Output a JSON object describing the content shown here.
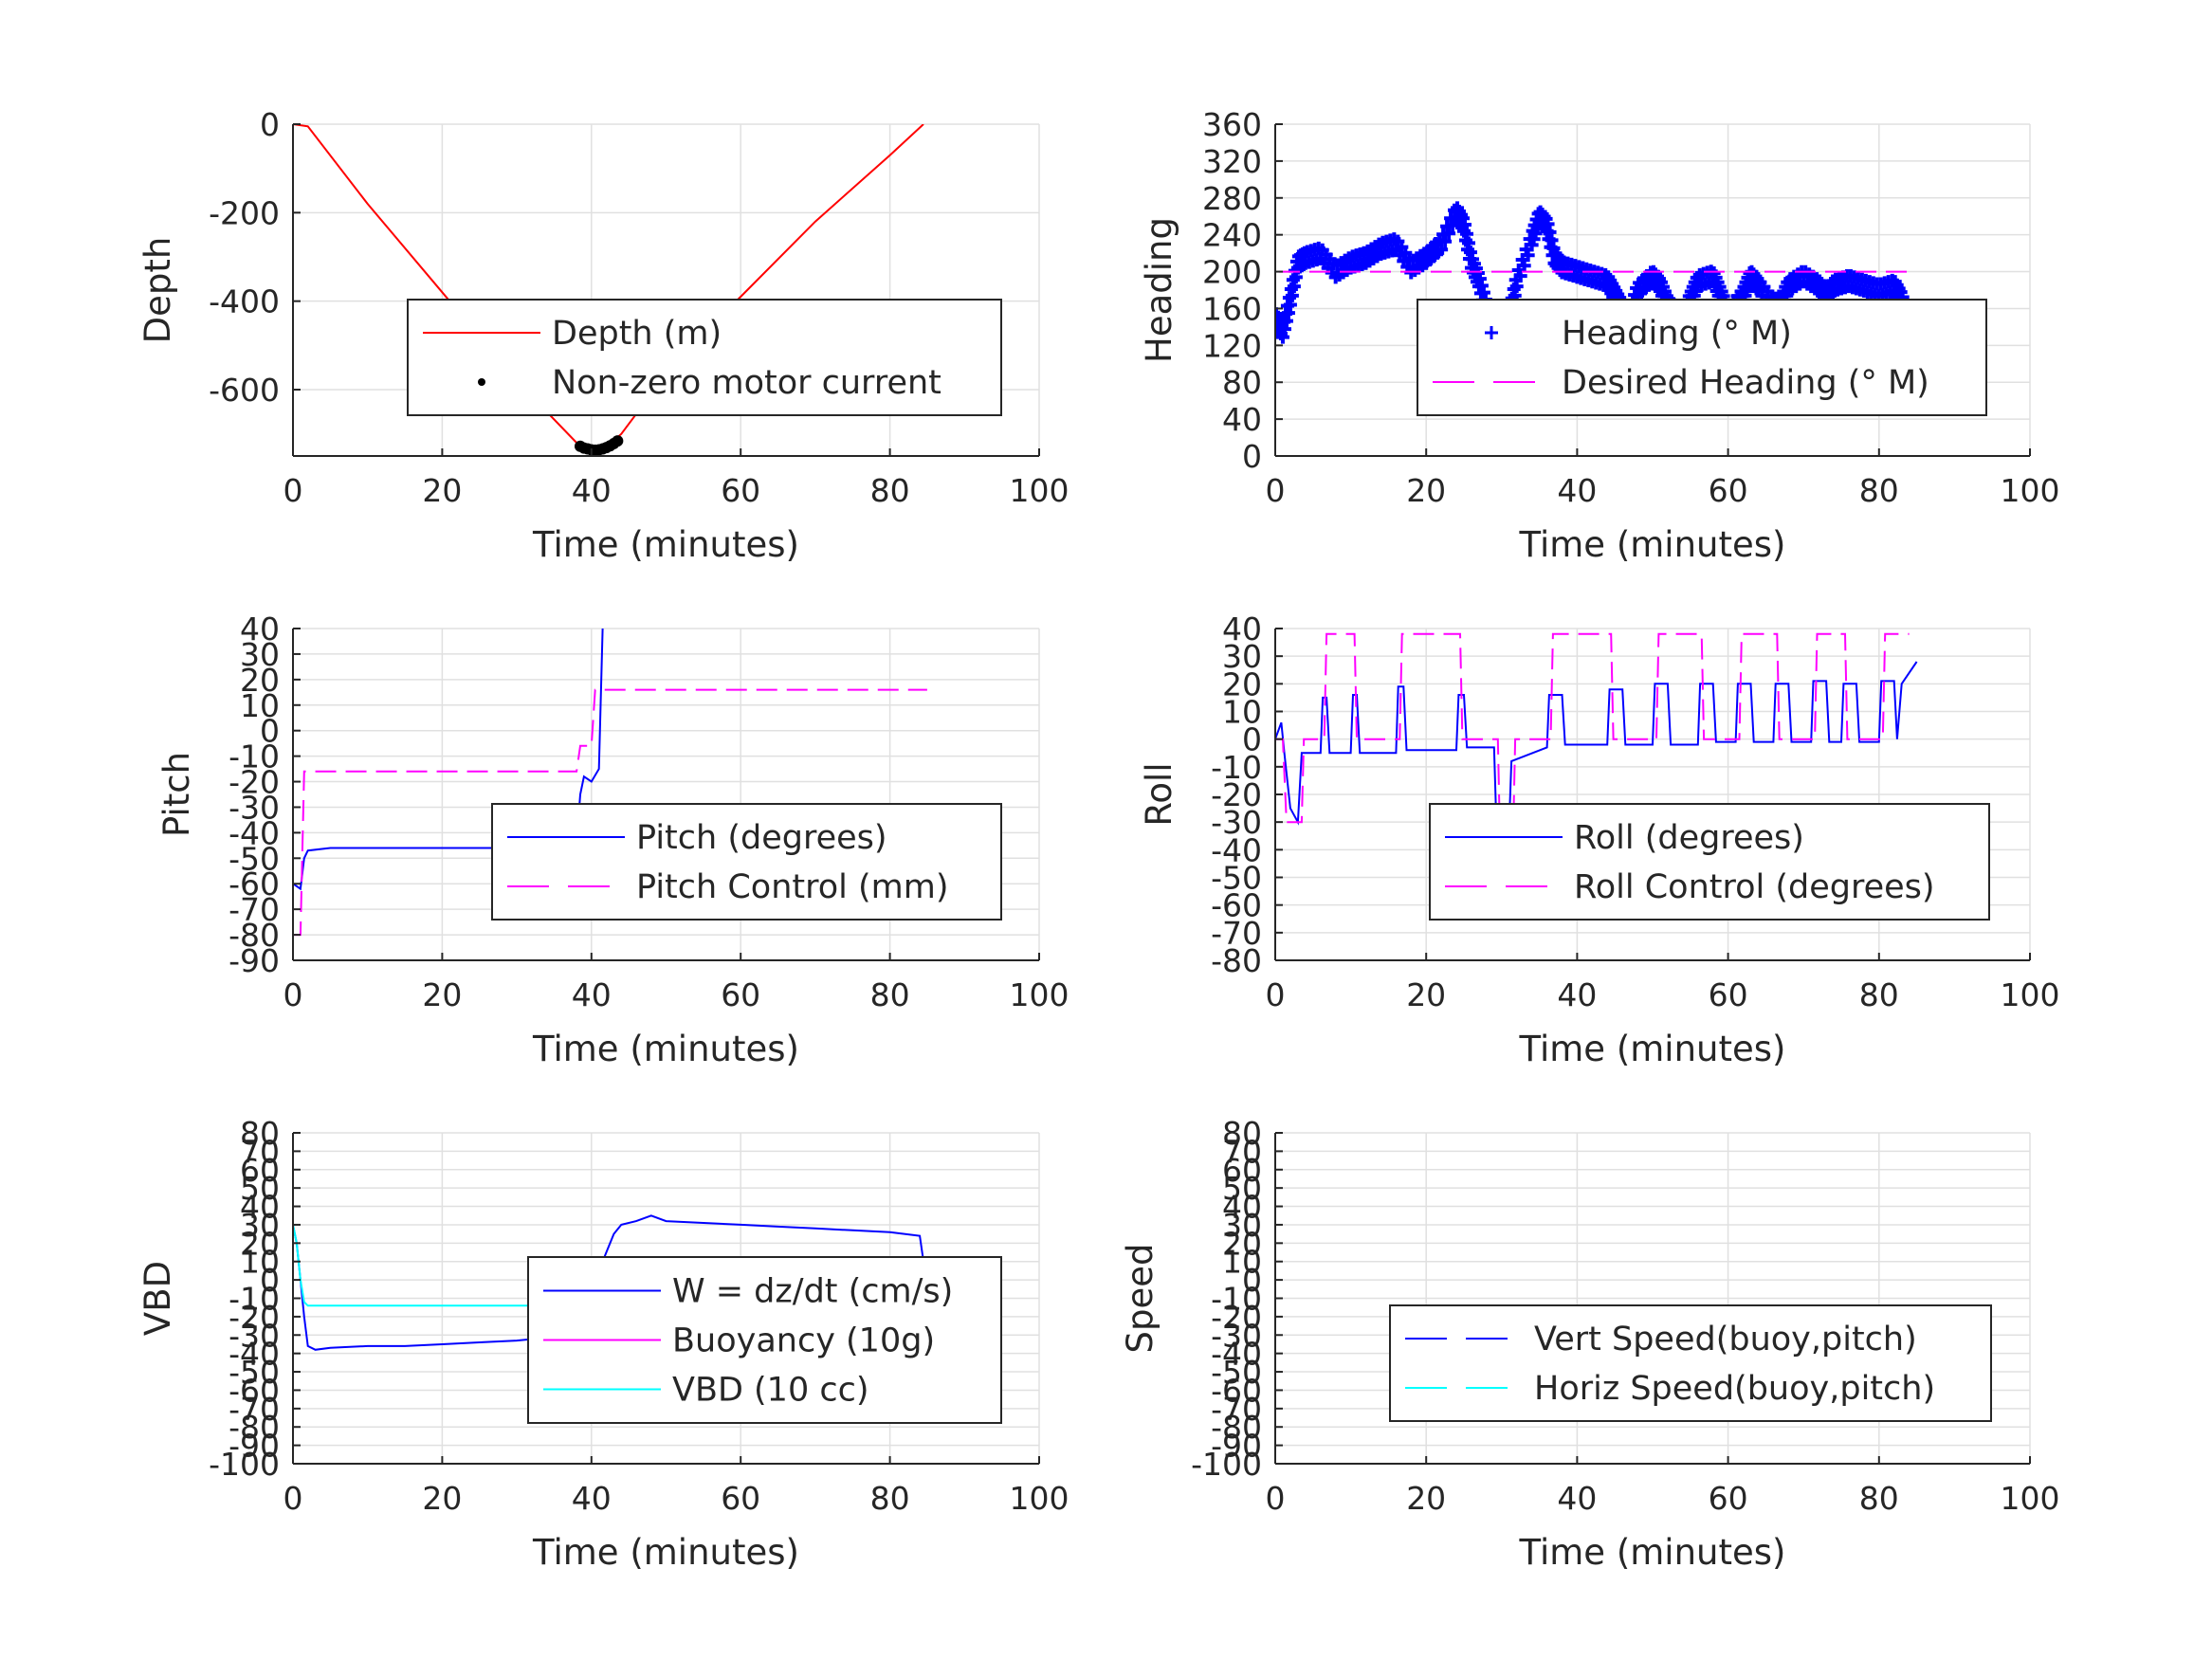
{
  "chart_data": [
    {
      "id": "depth",
      "type": "line",
      "xlabel": "Time (minutes)",
      "ylabel": "Depth",
      "xlim": [
        0,
        100
      ],
      "ylim": [
        -750,
        0
      ],
      "xticks": [
        "0",
        "20",
        "40",
        "60",
        "80",
        "100"
      ],
      "yticks": [
        "0",
        "-200",
        "-400",
        "-600"
      ],
      "ytick_values": [
        0,
        -200,
        -400,
        -600
      ],
      "grid": true,
      "legend_position": "center-right",
      "series": [
        {
          "name": "Depth (m)",
          "style": "solid",
          "color": "#ff0000",
          "x": [
            0,
            2,
            10,
            20,
            30,
            38,
            40,
            42,
            44,
            52,
            60,
            70,
            80,
            84.5
          ],
          "y": [
            0,
            -5,
            -180,
            -380,
            -580,
            -720,
            -735,
            -730,
            -700,
            -520,
            -390,
            -220,
            -70,
            0
          ]
        },
        {
          "name": "Non-zero motor current",
          "style": "markers",
          "color": "#000000",
          "x": [
            38.5,
            39,
            39.5,
            40,
            40.5,
            41,
            41.5,
            42,
            42.5,
            43,
            43.5
          ],
          "y": [
            -728,
            -732,
            -734,
            -736,
            -737,
            -736,
            -734,
            -731,
            -727,
            -722,
            -716
          ]
        }
      ]
    },
    {
      "id": "heading",
      "type": "line",
      "xlabel": "Time (minutes)",
      "ylabel": "Heading",
      "xlim": [
        0,
        100
      ],
      "ylim": [
        0,
        360
      ],
      "xticks": [
        "0",
        "20",
        "40",
        "60",
        "80",
        "100"
      ],
      "yticks": [
        "0",
        "40",
        "80",
        "120",
        "160",
        "200",
        "240",
        "280",
        "320",
        "360"
      ],
      "ytick_values": [
        0,
        40,
        80,
        120,
        160,
        200,
        240,
        280,
        320,
        360
      ],
      "grid": true,
      "legend_position": "center-right",
      "series": [
        {
          "name": "Heading (° M)",
          "style": "markers",
          "color": "#0000ff",
          "x": [
            0,
            1,
            2,
            3,
            4,
            6,
            8,
            10,
            12,
            14,
            16,
            18,
            20,
            22,
            24,
            25,
            26,
            27,
            28,
            29,
            30,
            31,
            32,
            34,
            35,
            36,
            37,
            38,
            40,
            42,
            44,
            45,
            46,
            47,
            48,
            50,
            51,
            52,
            54,
            55,
            56,
            58,
            59,
            60,
            62,
            63,
            64,
            66,
            67,
            68,
            70,
            72,
            73,
            74,
            76,
            78,
            80,
            82,
            83,
            84,
            85
          ],
          "y": [
            150,
            135,
            170,
            210,
            215,
            220,
            200,
            210,
            215,
            225,
            230,
            205,
            215,
            230,
            265,
            250,
            210,
            190,
            160,
            140,
            135,
            150,
            190,
            235,
            260,
            250,
            215,
            205,
            200,
            195,
            190,
            175,
            160,
            150,
            180,
            195,
            185,
            165,
            150,
            170,
            190,
            195,
            175,
            155,
            175,
            195,
            185,
            165,
            165,
            185,
            195,
            185,
            175,
            185,
            190,
            185,
            180,
            185,
            170,
            140,
            140
          ]
        },
        {
          "name": "Desired Heading (° M)",
          "style": "dashed",
          "color": "#ff00ff",
          "x": [
            0.5,
            84
          ],
          "y": [
            200,
            200
          ]
        }
      ]
    },
    {
      "id": "pitch",
      "type": "line",
      "xlabel": "Time (minutes)",
      "ylabel": "Pitch",
      "xlim": [
        0,
        100
      ],
      "ylim": [
        -90,
        40
      ],
      "xticks": [
        "0",
        "20",
        "40",
        "60",
        "80",
        "100"
      ],
      "yticks": [
        "-90",
        "-80",
        "-70",
        "-60",
        "-50",
        "-40",
        "-30",
        "-20",
        "-10",
        "0",
        "10",
        "20",
        "30",
        "40"
      ],
      "ytick_values": [
        -90,
        -80,
        -70,
        -60,
        -50,
        -40,
        -30,
        -20,
        -10,
        0,
        10,
        20,
        30,
        40
      ],
      "grid": true,
      "legend_position": "center-right",
      "series": [
        {
          "name": "Pitch (degrees)",
          "style": "solid",
          "color": "#0000ff",
          "x": [
            0,
            1,
            1.5,
            2,
            5,
            10,
            15,
            20,
            25,
            30,
            35,
            38,
            38.5,
            39,
            40,
            41,
            41.5
          ],
          "y": [
            -60,
            -62,
            -50,
            -47,
            -46,
            -46,
            -46,
            -46,
            -46,
            -46,
            -45,
            -44,
            -25,
            -18,
            -20,
            -15,
            40
          ]
        },
        {
          "name": "Pitch Control (mm)",
          "style": "dashed",
          "color": "#ff00ff",
          "x": [
            0,
            1,
            1.5,
            10,
            20,
            30,
            38,
            38.5,
            40,
            40.5,
            41,
            50,
            60,
            70,
            80,
            85
          ],
          "y": [
            -80,
            -80,
            -16,
            -16,
            -16,
            -16,
            -16,
            -6,
            -6,
            16,
            16,
            16,
            16,
            16,
            16,
            16
          ]
        }
      ]
    },
    {
      "id": "roll",
      "type": "line",
      "xlabel": "Time (minutes)",
      "ylabel": "Roll",
      "xlim": [
        0,
        100
      ],
      "ylim": [
        -80,
        40
      ],
      "xticks": [
        "0",
        "20",
        "40",
        "60",
        "80",
        "100"
      ],
      "yticks": [
        "-80",
        "-70",
        "-60",
        "-50",
        "-40",
        "-30",
        "-20",
        "-10",
        "0",
        "10",
        "20",
        "30",
        "40"
      ],
      "ytick_values": [
        -80,
        -70,
        -60,
        -50,
        -40,
        -30,
        -20,
        -10,
        0,
        10,
        20,
        30,
        40
      ],
      "grid": true,
      "legend_position": "center-right",
      "series": [
        {
          "name": "Roll (degrees)",
          "style": "solid",
          "color": "#0000ff",
          "x": [
            0,
            0.8,
            1.2,
            2,
            3,
            3.5,
            4,
            6,
            6.3,
            6.8,
            7.2,
            10,
            10.3,
            10.8,
            11.2,
            16,
            16.3,
            17,
            17.4,
            24,
            24.3,
            25,
            25.4,
            29,
            29.3,
            31,
            31.3,
            36,
            36.3,
            38,
            38.4,
            44,
            44.3,
            46,
            46.4,
            50,
            50.3,
            52,
            52.4,
            56,
            56.3,
            58,
            58.4,
            61,
            61.3,
            63,
            63.4,
            66,
            66.3,
            68,
            68.4,
            71,
            71.3,
            73,
            73.4,
            75,
            75.3,
            77,
            77.4,
            80,
            80.3,
            82,
            82.4,
            83,
            85
          ],
          "y": [
            0,
            6,
            -5,
            -25,
            -30,
            -5,
            -5,
            -5,
            15,
            15,
            -5,
            -5,
            16,
            16,
            -5,
            -5,
            19,
            19,
            -4,
            -4,
            16,
            16,
            -3,
            -3,
            -30,
            -30,
            -8,
            -3,
            16,
            16,
            -2,
            -2,
            18,
            18,
            -2,
            -2,
            20,
            20,
            -2,
            -2,
            20,
            20,
            -1,
            -1,
            20,
            20,
            -1,
            -1,
            20,
            20,
            -1,
            -1,
            21,
            21,
            -1,
            -1,
            20,
            20,
            -1,
            -1,
            21,
            21,
            0,
            20,
            28
          ]
        },
        {
          "name": "Roll Control (degrees)",
          "style": "dashed",
          "color": "#ff00ff",
          "x": [
            0,
            1,
            1.5,
            3.5,
            3.8,
            6.5,
            6.8,
            10.5,
            10.8,
            16.5,
            16.8,
            24.5,
            24.8,
            29.5,
            29.8,
            31.5,
            31.8,
            36.5,
            36.8,
            44.5,
            44.8,
            50.5,
            50.8,
            56.5,
            56.8,
            61.5,
            61.8,
            66.5,
            66.8,
            71.5,
            71.8,
            75.5,
            75.8,
            80.5,
            80.8,
            84
          ],
          "y": [
            0,
            0,
            -30,
            -30,
            0,
            0,
            38,
            38,
            0,
            0,
            38,
            38,
            0,
            0,
            -38,
            -38,
            0,
            0,
            38,
            38,
            0,
            0,
            38,
            38,
            0,
            0,
            38,
            38,
            0,
            0,
            38,
            38,
            0,
            0,
            38,
            38
          ]
        }
      ]
    },
    {
      "id": "vbd",
      "type": "line",
      "xlabel": "Time (minutes)",
      "ylabel": "VBD",
      "xlim": [
        0,
        100
      ],
      "ylim": [
        -100,
        80
      ],
      "xticks": [
        "0",
        "20",
        "40",
        "60",
        "80",
        "100"
      ],
      "yticks": [
        "-100",
        "-90",
        "-80",
        "-70",
        "-60",
        "-50",
        "-40",
        "-30",
        "-20",
        "-10",
        "0",
        "10",
        "20",
        "30",
        "40",
        "50",
        "60",
        "70",
        "80"
      ],
      "ytick_values": [
        -100,
        -90,
        -80,
        -70,
        -60,
        -50,
        -40,
        -30,
        -20,
        -10,
        0,
        10,
        20,
        30,
        40,
        50,
        60,
        70,
        80
      ],
      "grid": true,
      "legend_position": "center-right",
      "series": [
        {
          "name": "W = dz/dt (cm/s)",
          "style": "solid",
          "color": "#0000ff",
          "x": [
            0,
            0.5,
            1,
            1.5,
            2,
            3,
            5,
            10,
            15,
            20,
            25,
            30,
            35,
            38,
            39,
            40,
            41,
            42,
            43,
            44,
            46,
            48,
            50,
            55,
            60,
            65,
            70,
            75,
            80,
            84,
            84.5
          ],
          "y": [
            30,
            20,
            0,
            -20,
            -36,
            -38,
            -37,
            -36,
            -36,
            -35,
            -34,
            -33,
            -31,
            -30,
            -20,
            -5,
            5,
            15,
            25,
            30,
            32,
            35,
            32,
            31,
            30,
            29,
            28,
            27,
            26,
            24,
            10
          ]
        },
        {
          "name": "Buoyancy (10g)",
          "style": "solid",
          "color": "#ff00ff",
          "x": [
            38,
            84
          ],
          "y": [
            -30,
            -30
          ]
        },
        {
          "name": "VBD (10 cc)",
          "style": "solid",
          "color": "#00ffff",
          "x": [
            0,
            0.5,
            1,
            1.5,
            2,
            10,
            20,
            30,
            38,
            39,
            40,
            42,
            43,
            44,
            50,
            60,
            70,
            80,
            84,
            84.5
          ],
          "y": [
            30,
            20,
            0,
            -12,
            -14,
            -14,
            -14,
            -14,
            -14,
            -10,
            -5,
            5,
            10,
            12,
            12,
            12,
            12,
            12,
            12,
            10
          ]
        }
      ]
    },
    {
      "id": "speed",
      "type": "line",
      "xlabel": "Time (minutes)",
      "ylabel": "Speed",
      "xlim": [
        0,
        100
      ],
      "ylim": [
        -100,
        80
      ],
      "xticks": [
        "0",
        "20",
        "40",
        "60",
        "80",
        "100"
      ],
      "yticks": [
        "-100",
        "-90",
        "-80",
        "-70",
        "-60",
        "-50",
        "-40",
        "-30",
        "-20",
        "-10",
        "0",
        "10",
        "20",
        "30",
        "40",
        "50",
        "60",
        "70",
        "80"
      ],
      "ytick_values": [
        -100,
        -90,
        -80,
        -70,
        -60,
        -50,
        -40,
        -30,
        -20,
        -10,
        0,
        10,
        20,
        30,
        40,
        50,
        60,
        70,
        80
      ],
      "grid": true,
      "legend_position": "center-right",
      "series": [
        {
          "name": "Vert Speed(buoy,pitch)",
          "style": "dashed",
          "color": "#0000ff",
          "x": [],
          "y": []
        },
        {
          "name": "Horiz Speed(buoy,pitch)",
          "style": "dashed",
          "color": "#00ffff",
          "x": [],
          "y": []
        }
      ]
    }
  ]
}
